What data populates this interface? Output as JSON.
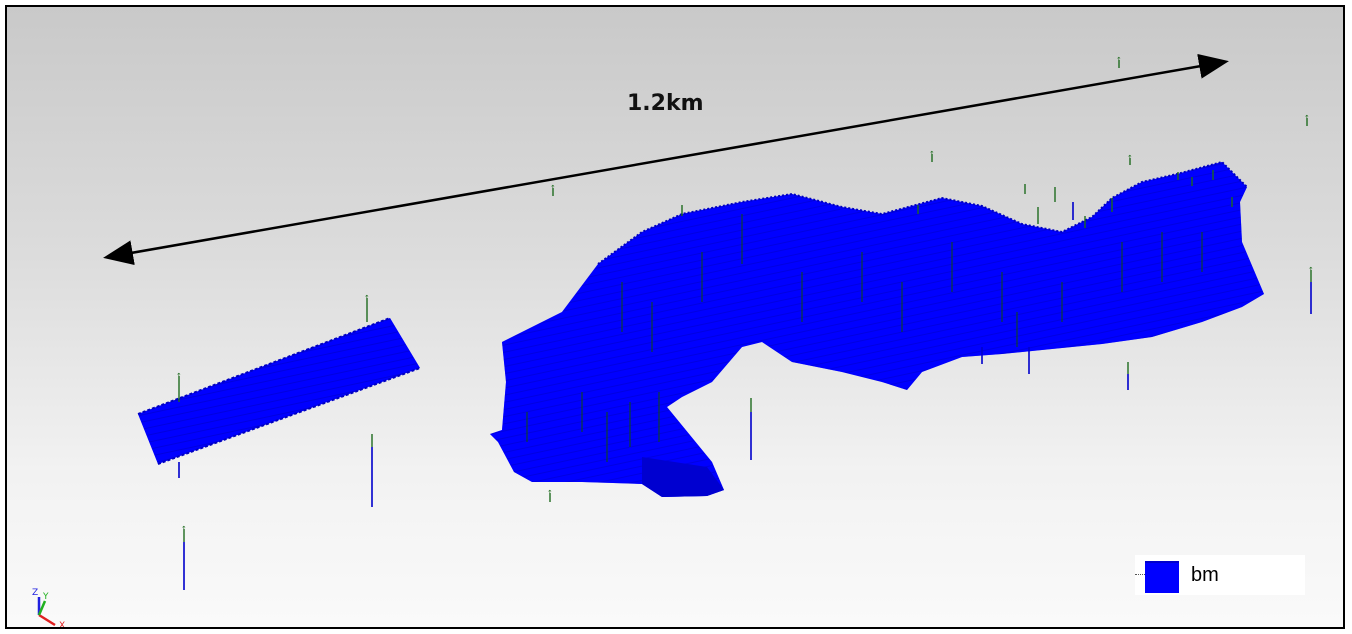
{
  "viewport": {
    "scale_label": "1.2km",
    "background_gradient": [
      "#c9c9c9",
      "#fafafa"
    ]
  },
  "model": {
    "fill_color": "#0000ff",
    "drillhole_color_top": "#1e6b1e",
    "drillhole_color_bottom": "#0000cc"
  },
  "legend": {
    "items": [
      {
        "label": "bm",
        "color": "#0000ff"
      }
    ]
  },
  "axis": {
    "z_label": "Z",
    "y_label": "Y",
    "x_label": "X",
    "x_color": "#e02020",
    "y_color": "#20b020",
    "z_color": "#2020e0"
  }
}
